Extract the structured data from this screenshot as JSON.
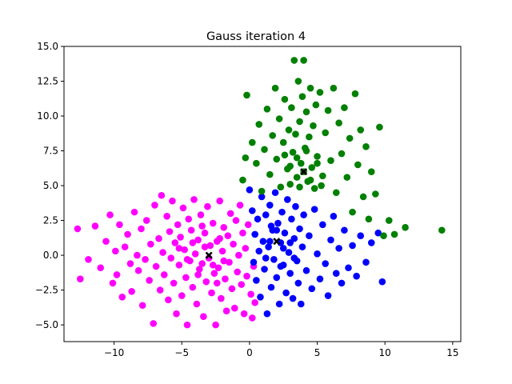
{
  "chart_data": {
    "type": "scatter",
    "title": "Gauss iteration 4",
    "xlabel": "",
    "ylabel": "",
    "xlim": [
      -13.7,
      15.6
    ],
    "ylim": [
      -6.2,
      15.0
    ],
    "xticks": [
      -10,
      -5,
      0,
      5,
      10,
      15
    ],
    "yticks": [
      -5.0,
      -2.5,
      0.0,
      2.5,
      5.0,
      7.5,
      10.0,
      12.5,
      15.0
    ],
    "grid": false,
    "series": [
      {
        "color": "#ff00ff",
        "center": [
          -3.0,
          0.0
        ],
        "points": [
          [
            -12.7,
            1.9
          ],
          [
            -12.5,
            -1.7
          ],
          [
            -11.9,
            -0.3
          ],
          [
            -11.4,
            2.1
          ],
          [
            -11.0,
            -0.9
          ],
          [
            -10.6,
            1.0
          ],
          [
            -10.3,
            2.9
          ],
          [
            -10.1,
            -2.0
          ],
          [
            -9.9,
            0.3
          ],
          [
            -9.8,
            -1.4
          ],
          [
            -9.6,
            2.2
          ],
          [
            -9.4,
            -3.0
          ],
          [
            -9.2,
            0.6
          ],
          [
            -9.0,
            1.5
          ],
          [
            -8.8,
            -0.6
          ],
          [
            -8.7,
            -2.6
          ],
          [
            -8.5,
            3.1
          ],
          [
            -8.3,
            0.0
          ],
          [
            -8.2,
            -1.1
          ],
          [
            -8.0,
            1.9
          ],
          [
            -7.9,
            -3.6
          ],
          [
            -7.7,
            -0.3
          ],
          [
            -7.6,
            2.5
          ],
          [
            -7.4,
            -1.8
          ],
          [
            -7.3,
            0.8
          ],
          [
            -7.1,
            -4.9
          ],
          [
            -7.0,
            3.6
          ],
          [
            -6.9,
            -0.8
          ],
          [
            -6.7,
            1.2
          ],
          [
            -6.6,
            -2.5
          ],
          [
            -6.5,
            4.3
          ],
          [
            -6.4,
            0.2
          ],
          [
            -6.3,
            -1.4
          ],
          [
            -6.1,
            2.8
          ],
          [
            -6.0,
            -3.2
          ],
          [
            -5.9,
            1.7
          ],
          [
            -5.8,
            -0.2
          ],
          [
            -5.7,
            3.9
          ],
          [
            -5.6,
            -2.0
          ],
          [
            -5.5,
            0.9
          ],
          [
            -5.4,
            -4.2
          ],
          [
            -5.3,
            2.2
          ],
          [
            -5.2,
            -0.7
          ],
          [
            -5.1,
            1.3
          ],
          [
            -5.0,
            -2.9
          ],
          [
            -4.9,
            3.4
          ],
          [
            -4.8,
            0.4
          ],
          [
            -4.7,
            -1.6
          ],
          [
            -4.6,
            -5.0
          ],
          [
            -4.5,
            2.6
          ],
          [
            -4.4,
            -0.4
          ],
          [
            -4.3,
            1.8
          ],
          [
            -4.2,
            -2.3
          ],
          [
            -4.1,
            4.0
          ],
          [
            -4.0,
            0.1
          ],
          [
            -3.9,
            -3.5
          ],
          [
            -3.8,
            1.1
          ],
          [
            -3.7,
            -1.0
          ],
          [
            -3.6,
            2.9
          ],
          [
            -3.5,
            -0.6
          ],
          [
            -3.4,
            -4.4
          ],
          [
            -3.3,
            1.6
          ],
          [
            -3.2,
            -1.9
          ],
          [
            -3.1,
            3.5
          ],
          [
            -3.0,
            -0.2
          ],
          [
            -2.9,
            0.7
          ],
          [
            -2.8,
            -2.7
          ],
          [
            -2.7,
            2.3
          ],
          [
            -2.6,
            -1.3
          ],
          [
            -2.5,
            -5.0
          ],
          [
            -2.4,
            1.0
          ],
          [
            -2.3,
            -0.9
          ],
          [
            -2.2,
            3.9
          ],
          [
            -2.1,
            -3.1
          ],
          [
            -2.0,
            0.3
          ],
          [
            -1.9,
            2.0
          ],
          [
            -1.8,
            -1.7
          ],
          [
            -1.7,
            -4.0
          ],
          [
            -1.6,
            1.4
          ],
          [
            -1.5,
            -0.5
          ],
          [
            -1.4,
            3.0
          ],
          [
            -1.3,
            -2.4
          ],
          [
            -1.2,
            0.8
          ],
          [
            -1.1,
            -3.8
          ],
          [
            -1.0,
            2.5
          ],
          [
            -0.9,
            -1.2
          ],
          [
            -0.8,
            0.0
          ],
          [
            -0.7,
            3.6
          ],
          [
            -0.6,
            -2.1
          ],
          [
            -0.5,
            1.6
          ],
          [
            -0.4,
            -4.2
          ],
          [
            -0.3,
            0.5
          ],
          [
            -0.2,
            -1.5
          ],
          [
            -0.1,
            2.2
          ],
          [
            0.1,
            -2.8
          ],
          [
            0.2,
            -4.5
          ],
          [
            0.3,
            -0.8
          ],
          [
            0.4,
            -3.4
          ],
          [
            -3.3,
            0.6
          ],
          [
            -2.7,
            -0.7
          ],
          [
            -4.2,
            0.9
          ],
          [
            -3.8,
            -1.4
          ],
          [
            -2.2,
            1.2
          ],
          [
            -4.6,
            -0.3
          ],
          [
            -3.5,
            2.1
          ],
          [
            -2.4,
            -2.0
          ],
          [
            -5.2,
            0.5
          ],
          [
            -1.9,
            -0.4
          ]
        ]
      },
      {
        "color": "#0000ff",
        "center": [
          2.0,
          1.0
        ],
        "points": [
          [
            0.0,
            4.7
          ],
          [
            0.2,
            3.2
          ],
          [
            0.3,
            -0.5
          ],
          [
            0.4,
            1.5
          ],
          [
            0.5,
            -1.8
          ],
          [
            0.6,
            2.6
          ],
          [
            0.7,
            0.3
          ],
          [
            0.8,
            -3.0
          ],
          [
            0.9,
            4.2
          ],
          [
            1.0,
            1.0
          ],
          [
            1.1,
            -1.0
          ],
          [
            1.2,
            2.9
          ],
          [
            1.3,
            -4.2
          ],
          [
            1.4,
            0.6
          ],
          [
            1.5,
            3.6
          ],
          [
            1.6,
            -2.3
          ],
          [
            1.7,
            1.8
          ],
          [
            1.8,
            -0.3
          ],
          [
            1.9,
            4.5
          ],
          [
            2.0,
            -1.6
          ],
          [
            2.1,
            2.3
          ],
          [
            2.2,
            -3.5
          ],
          [
            2.3,
            0.9
          ],
          [
            2.4,
            3.1
          ],
          [
            2.5,
            -0.7
          ],
          [
            2.6,
            1.6
          ],
          [
            2.7,
            -2.7
          ],
          [
            2.8,
            4.0
          ],
          [
            2.9,
            0.2
          ],
          [
            3.0,
            -1.3
          ],
          [
            3.1,
            2.6
          ],
          [
            3.2,
            -3.1
          ],
          [
            3.3,
            1.2
          ],
          [
            3.4,
            3.5
          ],
          [
            3.5,
            -0.4
          ],
          [
            3.6,
            -2.0
          ],
          [
            3.7,
            1.9
          ],
          [
            3.8,
            -3.5
          ],
          [
            3.9,
            0.6
          ],
          [
            4.0,
            2.9
          ],
          [
            4.2,
            -1.1
          ],
          [
            4.4,
            1.4
          ],
          [
            4.6,
            -2.4
          ],
          [
            4.8,
            3.3
          ],
          [
            5.0,
            0.1
          ],
          [
            5.2,
            -1.7
          ],
          [
            5.4,
            2.2
          ],
          [
            5.6,
            -0.6
          ],
          [
            5.8,
            -2.9
          ],
          [
            6.0,
            1.1
          ],
          [
            6.2,
            2.8
          ],
          [
            6.4,
            -1.3
          ],
          [
            6.6,
            0.5
          ],
          [
            6.8,
            -2.0
          ],
          [
            7.0,
            1.8
          ],
          [
            7.3,
            -0.9
          ],
          [
            7.6,
            0.7
          ],
          [
            7.9,
            -1.5
          ],
          [
            8.2,
            1.4
          ],
          [
            8.6,
            -0.5
          ],
          [
            9.0,
            0.9
          ],
          [
            9.5,
            1.6
          ],
          [
            9.8,
            -1.9
          ],
          [
            1.5,
            1.0
          ],
          [
            2.5,
            0.5
          ],
          [
            2.0,
            1.8
          ],
          [
            1.2,
            -0.2
          ],
          [
            3.0,
            0.9
          ],
          [
            2.3,
            -0.8
          ],
          [
            1.6,
            2.1
          ],
          [
            3.3,
            -0.2
          ]
        ]
      },
      {
        "color": "#008000",
        "center": [
          4.0,
          6.0
        ],
        "points": [
          [
            -0.5,
            5.4
          ],
          [
            -0.3,
            7.0
          ],
          [
            -0.2,
            11.5
          ],
          [
            0.2,
            8.1
          ],
          [
            0.5,
            6.6
          ],
          [
            0.7,
            9.4
          ],
          [
            0.9,
            4.6
          ],
          [
            1.1,
            7.6
          ],
          [
            1.3,
            10.5
          ],
          [
            1.5,
            5.8
          ],
          [
            1.7,
            8.6
          ],
          [
            1.9,
            12.0
          ],
          [
            2.0,
            6.9
          ],
          [
            2.2,
            9.8
          ],
          [
            2.3,
            4.9
          ],
          [
            2.5,
            8.1
          ],
          [
            2.6,
            11.2
          ],
          [
            2.8,
            6.2
          ],
          [
            2.9,
            9.0
          ],
          [
            3.0,
            5.1
          ],
          [
            3.1,
            10.6
          ],
          [
            3.2,
            7.4
          ],
          [
            3.3,
            14.0
          ],
          [
            3.4,
            8.7
          ],
          [
            3.5,
            5.6
          ],
          [
            3.6,
            12.5
          ],
          [
            3.7,
            9.6
          ],
          [
            3.8,
            6.6
          ],
          [
            3.9,
            11.4
          ],
          [
            4.0,
            14.0
          ],
          [
            4.1,
            7.7
          ],
          [
            4.2,
            10.3
          ],
          [
            4.3,
            5.3
          ],
          [
            4.4,
            8.5
          ],
          [
            4.5,
            12.0
          ],
          [
            4.6,
            6.3
          ],
          [
            4.7,
            9.3
          ],
          [
            4.8,
            4.8
          ],
          [
            4.9,
            10.8
          ],
          [
            5.0,
            7.1
          ],
          [
            5.2,
            11.7
          ],
          [
            5.4,
            5.7
          ],
          [
            5.6,
            8.8
          ],
          [
            5.8,
            10.4
          ],
          [
            6.0,
            6.8
          ],
          [
            6.2,
            12.0
          ],
          [
            6.4,
            4.5
          ],
          [
            6.6,
            9.5
          ],
          [
            6.8,
            7.3
          ],
          [
            7.0,
            10.6
          ],
          [
            7.2,
            5.6
          ],
          [
            7.4,
            8.4
          ],
          [
            7.6,
            3.1
          ],
          [
            7.8,
            11.6
          ],
          [
            8.0,
            6.5
          ],
          [
            8.2,
            9.0
          ],
          [
            8.4,
            4.2
          ],
          [
            8.6,
            7.8
          ],
          [
            8.8,
            2.6
          ],
          [
            9.0,
            6.0
          ],
          [
            9.3,
            4.4
          ],
          [
            9.6,
            9.2
          ],
          [
            9.9,
            1.4
          ],
          [
            10.3,
            2.5
          ],
          [
            10.7,
            1.5
          ],
          [
            11.5,
            2.0
          ],
          [
            14.2,
            1.8
          ],
          [
            4.0,
            6.0
          ],
          [
            3.5,
            7.0
          ],
          [
            4.5,
            5.4
          ],
          [
            3.0,
            6.4
          ],
          [
            5.0,
            6.6
          ],
          [
            4.2,
            7.5
          ],
          [
            3.7,
            4.9
          ],
          [
            5.3,
            5.0
          ],
          [
            2.6,
            7.2
          ]
        ]
      },
      {
        "color": "#000000",
        "name": "",
        "marker": "x",
        "points": [
          [
            -3.0,
            0.0
          ],
          [
            2.0,
            1.0
          ],
          [
            4.0,
            6.0
          ]
        ]
      }
    ]
  }
}
